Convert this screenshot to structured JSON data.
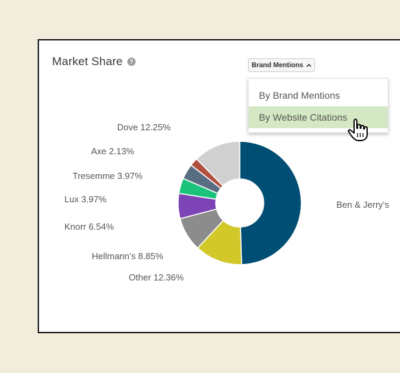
{
  "widget": {
    "title": "Market Share",
    "help_icon": "?",
    "dropdown_label": "Brand Mentions",
    "dropdown_caret": "^",
    "menu_items": [
      {
        "label": "By Brand Mentions",
        "selected": false
      },
      {
        "label": "By Website Citations",
        "selected": true
      }
    ],
    "selected_color": "#d5e8c4"
  },
  "chart_data": {
    "type": "pie",
    "donut": true,
    "slices": [
      {
        "name": "Ben & Jerry's",
        "label": "Ben & Jerry’s",
        "value": 49.1,
        "color": "#004e73"
      },
      {
        "name": "Other",
        "label": "Other  12.36%",
        "value": 12.36,
        "color": "#d2c82a"
      },
      {
        "name": "Hellmann's",
        "label": "Hellmann’s  8.85%",
        "value": 8.85,
        "color": "#8c8c8c"
      },
      {
        "name": "Knorr",
        "label": "Knorr  6.54%",
        "value": 6.54,
        "color": "#7d44b5"
      },
      {
        "name": "Lux",
        "label": "Lux  3.97%",
        "value": 3.97,
        "color": "#1ac27a"
      },
      {
        "name": "Tresemme",
        "label": "Tresemme  3.97%",
        "value": 3.97,
        "color": "#5a6e83"
      },
      {
        "name": "Axe",
        "label": "Axe  2.13%",
        "value": 2.13,
        "color": "#b0513f"
      },
      {
        "name": "Dove",
        "label": "Dove  12.25%",
        "value": 12.25,
        "color": "#d0d0d0"
      }
    ]
  }
}
